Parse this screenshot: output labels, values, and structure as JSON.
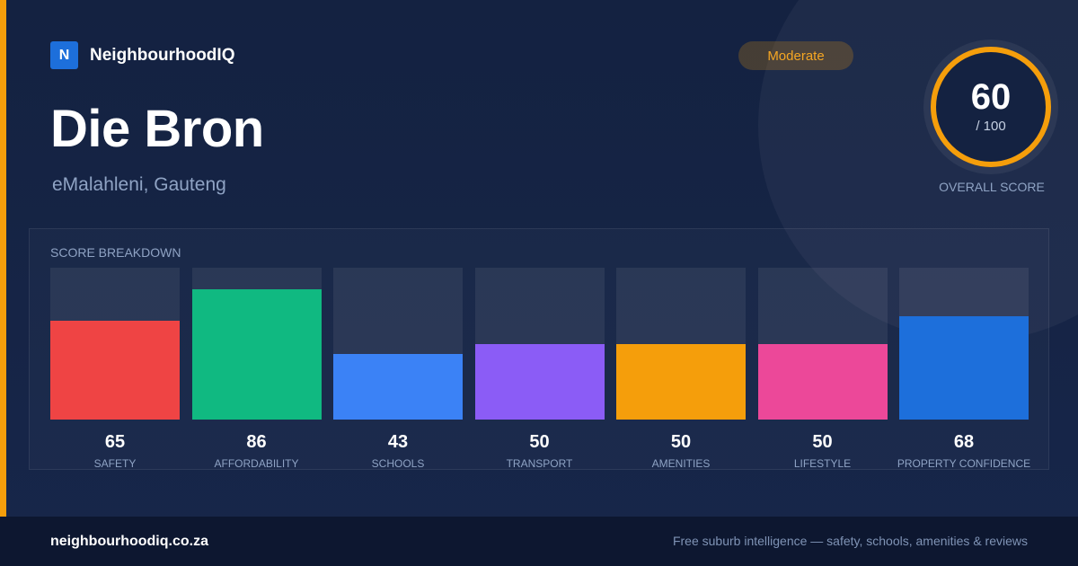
{
  "brand": {
    "logo_letter": "N",
    "name": "NeighbourhoodIQ"
  },
  "suburb": {
    "name": "Die Bron",
    "location": "eMalahleni, Gauteng"
  },
  "rating": {
    "label": "Moderate"
  },
  "overall": {
    "score": "60",
    "denominator": "/ 100",
    "label": "OVERALL SCORE",
    "fraction": 0.6
  },
  "breakdown": {
    "title": "SCORE BREAKDOWN"
  },
  "chart_data": {
    "type": "bar",
    "categories": [
      "SAFETY",
      "AFFORDABILITY",
      "SCHOOLS",
      "TRANSPORT",
      "AMENITIES",
      "LIFESTYLE",
      "PROPERTY CONFIDENCE"
    ],
    "values": [
      65,
      86,
      43,
      50,
      50,
      50,
      68
    ],
    "labels": [
      "65",
      "86",
      "43",
      "50",
      "50",
      "50",
      "68"
    ],
    "ylim": [
      0,
      100
    ],
    "colors": [
      "#ef4444",
      "#10b981",
      "#3b82f6",
      "#8b5cf6",
      "#f59e0b",
      "#ec4899",
      "#1d6fdb"
    ]
  },
  "footer": {
    "url": "neighbourhoodiq.co.za",
    "tagline": "Free suburb intelligence — safety, schools, amenities & reviews"
  },
  "colors": {
    "accent": "#f59e0b",
    "brand": "#1d6fdb",
    "background": "#14213d",
    "ring_track": "#2a3858"
  }
}
